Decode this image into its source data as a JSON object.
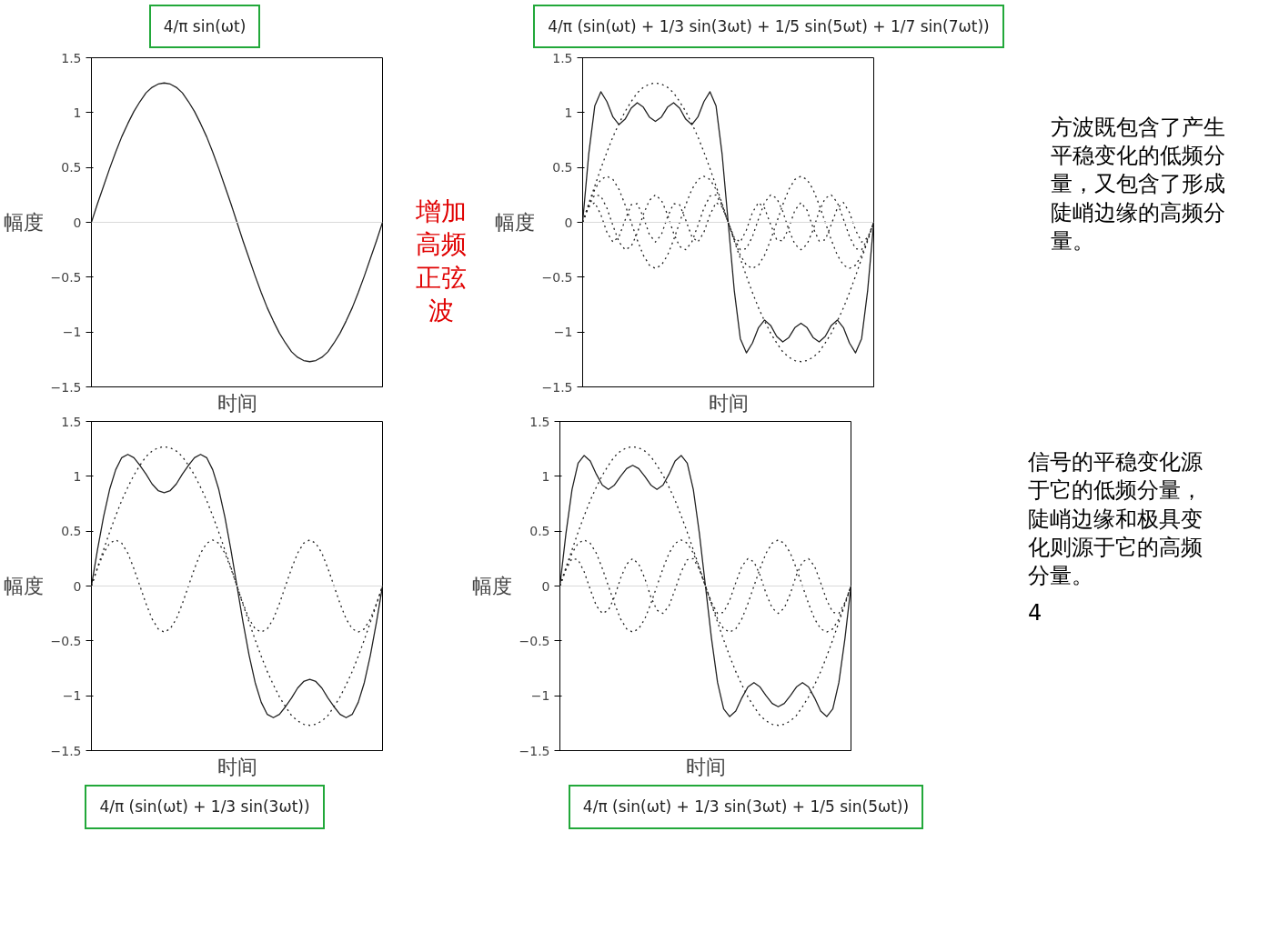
{
  "chart_data": [
    {
      "type": "line",
      "title": "4/π sin(ωt)",
      "ylabel": "幅度",
      "xlabel": "时间",
      "tick_labels": "y",
      "categories": [
        null,
        null,
        null,
        null,
        null,
        null,
        null,
        null,
        null,
        null,
        null,
        null,
        null,
        null,
        null,
        null,
        null,
        null,
        null,
        null,
        null,
        null,
        null,
        null,
        null,
        null,
        null,
        null,
        null,
        null,
        null,
        null,
        null,
        null,
        null,
        null,
        null,
        null,
        null,
        null,
        null,
        null,
        null,
        null,
        null,
        null,
        null,
        null,
        null
      ],
      "ylim": [
        -1.5,
        1.5
      ],
      "yticks": [
        {
          "value": -1.5,
          "label": "−1.5"
        },
        {
          "value": -1,
          "label": "−1"
        },
        {
          "value": -0.5,
          "label": "−0.5"
        },
        0,
        0.5,
        1,
        1.5
      ],
      "ref_lines": [
        {
          "axis": "y",
          "value": 0,
          "color": "#d9d9d9"
        }
      ],
      "annotations": [
        "增加高频正弦波"
      ],
      "series": [
        {
          "color": "#222222",
          "line_style": "solid",
          "values": [
            0,
            0.17,
            0.33,
            0.49,
            0.64,
            0.78,
            0.9,
            1.01,
            1.1,
            1.18,
            1.23,
            1.26,
            1.27,
            1.26,
            1.23,
            1.18,
            1.1,
            1.01,
            0.9,
            0.78,
            0.64,
            0.49,
            0.33,
            0.17,
            0,
            -0.17,
            -0.33,
            -0.49,
            -0.64,
            -0.78,
            -0.9,
            -1.01,
            -1.1,
            -1.18,
            -1.23,
            -1.26,
            -1.27,
            -1.26,
            -1.23,
            -1.18,
            -1.1,
            -1.01,
            -0.9,
            -0.78,
            -0.64,
            -0.49,
            -0.33,
            -0.17,
            0
          ]
        }
      ]
    },
    {
      "type": "line",
      "title": "4/π (sin(ωt) + 1/3 sin(3ωt) + 1/5 sin(5ωt) + 1/7 sin(7ωt))",
      "ylabel": "幅度",
      "xlabel": "时间",
      "tick_labels": "y",
      "categories": [
        null,
        null,
        null,
        null,
        null,
        null,
        null,
        null,
        null,
        null,
        null,
        null,
        null,
        null,
        null,
        null,
        null,
        null,
        null,
        null,
        null,
        null,
        null,
        null,
        null,
        null,
        null,
        null,
        null,
        null,
        null,
        null,
        null,
        null,
        null,
        null,
        null,
        null,
        null,
        null,
        null,
        null,
        null,
        null,
        null,
        null,
        null,
        null,
        null
      ],
      "ylim": [
        -1.5,
        1.5
      ],
      "yticks": [
        {
          "value": -1.5,
          "label": "−1.5"
        },
        {
          "value": -1,
          "label": "−1"
        },
        {
          "value": -0.5,
          "label": "−0.5"
        },
        0,
        0.5,
        1,
        1.5
      ],
      "ref_lines": [
        {
          "axis": "y",
          "value": 0,
          "color": "#d9d9d9"
        }
      ],
      "annotations": [
        "方波既包含了产生平稳变化的低频分量，又包含了形成陡峭边缘的高频分量。"
      ],
      "series": [
        {
          "color": "#222222",
          "line_style": "solid",
          "values": [
            0,
            0.62,
            1.06,
            1.19,
            1.1,
            0.96,
            0.89,
            0.94,
            1.04,
            1.09,
            1.05,
            0.96,
            0.92,
            0.96,
            1.05,
            1.09,
            1.04,
            0.94,
            0.89,
            0.96,
            1.1,
            1.19,
            1.06,
            0.62,
            0,
            -0.62,
            -1.06,
            -1.19,
            -1.1,
            -0.96,
            -0.89,
            -0.94,
            -1.04,
            -1.09,
            -1.05,
            -0.96,
            -0.92,
            -0.96,
            -1.05,
            -1.09,
            -1.04,
            -0.94,
            -0.89,
            -0.96,
            -1.1,
            -1.19,
            -1.06,
            -0.62,
            0
          ]
        },
        {
          "color": "#222222",
          "line_style": "dotted",
          "values": [
            0,
            0.17,
            0.33,
            0.49,
            0.64,
            0.78,
            0.9,
            1.01,
            1.1,
            1.18,
            1.23,
            1.26,
            1.27,
            1.26,
            1.23,
            1.18,
            1.1,
            1.01,
            0.9,
            0.78,
            0.64,
            0.49,
            0.33,
            0.17,
            0,
            -0.17,
            -0.33,
            -0.49,
            -0.64,
            -0.78,
            -0.9,
            -1.01,
            -1.1,
            -1.18,
            -1.23,
            -1.26,
            -1.27,
            -1.26,
            -1.23,
            -1.18,
            -1.1,
            -1.01,
            -0.9,
            -0.78,
            -0.64,
            -0.49,
            -0.33,
            -0.17,
            0
          ]
        },
        {
          "color": "#222222",
          "line_style": "dotted",
          "values": [
            0,
            0.16,
            0.3,
            0.39,
            0.42,
            0.39,
            0.3,
            0.16,
            0,
            -0.16,
            -0.3,
            -0.39,
            -0.42,
            -0.39,
            -0.3,
            -0.16,
            0,
            0.16,
            0.3,
            0.39,
            0.42,
            0.39,
            0.3,
            0.16,
            0,
            -0.16,
            -0.3,
            -0.39,
            -0.42,
            -0.39,
            -0.3,
            -0.16,
            0,
            0.16,
            0.3,
            0.39,
            0.42,
            0.39,
            0.3,
            0.16,
            0,
            -0.16,
            -0.3,
            -0.39,
            -0.42,
            -0.39,
            -0.3,
            -0.16,
            0
          ]
        },
        {
          "color": "#222222",
          "line_style": "dotted",
          "values": [
            0,
            0.15,
            0.25,
            0.24,
            0.13,
            -0.03,
            -0.18,
            -0.25,
            -0.22,
            -0.1,
            0.07,
            0.2,
            0.25,
            0.2,
            0.07,
            -0.1,
            -0.22,
            -0.25,
            -0.18,
            -0.03,
            0.13,
            0.24,
            0.25,
            0.15,
            0,
            -0.15,
            -0.25,
            -0.24,
            -0.13,
            0.03,
            0.18,
            0.25,
            0.22,
            0.1,
            -0.07,
            -0.2,
            -0.25,
            -0.2,
            -0.07,
            0.1,
            0.22,
            0.25,
            0.18,
            0.03,
            -0.13,
            -0.24,
            -0.25,
            -0.15,
            0
          ]
        },
        {
          "color": "#222222",
          "line_style": "dotted",
          "values": [
            0,
            0.14,
            0.18,
            0.07,
            -0.09,
            -0.18,
            -0.13,
            0.02,
            0.16,
            0.17,
            0.05,
            -0.11,
            -0.18,
            -0.11,
            0.05,
            0.17,
            0.16,
            0.02,
            -0.13,
            -0.18,
            -0.09,
            0.07,
            0.18,
            0.14,
            0,
            -0.14,
            -0.18,
            -0.07,
            0.09,
            0.18,
            0.13,
            -0.02,
            -0.16,
            -0.17,
            -0.05,
            0.11,
            0.18,
            0.11,
            -0.05,
            -0.17,
            -0.16,
            -0.02,
            0.13,
            0.18,
            0.09,
            -0.07,
            -0.18,
            -0.14,
            0
          ]
        }
      ]
    },
    {
      "type": "line",
      "title": "4/π (sin(ωt) + 1/3 sin(3ωt))",
      "ylabel": "幅度",
      "xlabel": "时间",
      "tick_labels": "y",
      "categories": [
        null,
        null,
        null,
        null,
        null,
        null,
        null,
        null,
        null,
        null,
        null,
        null,
        null,
        null,
        null,
        null,
        null,
        null,
        null,
        null,
        null,
        null,
        null,
        null,
        null,
        null,
        null,
        null,
        null,
        null,
        null,
        null,
        null,
        null,
        null,
        null,
        null,
        null,
        null,
        null,
        null,
        null,
        null,
        null,
        null,
        null,
        null,
        null,
        null
      ],
      "ylim": [
        -1.5,
        1.5
      ],
      "yticks": [
        {
          "value": -1.5,
          "label": "−1.5"
        },
        {
          "value": -1,
          "label": "−1"
        },
        {
          "value": -0.5,
          "label": "−0.5"
        },
        0,
        0.5,
        1,
        1.5
      ],
      "ref_lines": [
        {
          "axis": "y",
          "value": 0,
          "color": "#d9d9d9"
        }
      ],
      "series": [
        {
          "color": "#222222",
          "line_style": "solid",
          "values": [
            0,
            0.33,
            0.63,
            0.88,
            1.06,
            1.17,
            1.2,
            1.17,
            1.1,
            1.02,
            0.93,
            0.87,
            0.85,
            0.87,
            0.93,
            1.02,
            1.1,
            1.17,
            1.2,
            1.17,
            1.06,
            0.88,
            0.63,
            0.33,
            0,
            -0.33,
            -0.63,
            -0.88,
            -1.06,
            -1.17,
            -1.2,
            -1.17,
            -1.1,
            -1.02,
            -0.93,
            -0.87,
            -0.85,
            -0.87,
            -0.93,
            -1.02,
            -1.1,
            -1.17,
            -1.2,
            -1.17,
            -1.06,
            -0.88,
            -0.63,
            -0.33,
            0
          ]
        },
        {
          "color": "#222222",
          "line_style": "dotted",
          "values": [
            0,
            0.17,
            0.33,
            0.49,
            0.64,
            0.78,
            0.9,
            1.01,
            1.1,
            1.18,
            1.23,
            1.26,
            1.27,
            1.26,
            1.23,
            1.18,
            1.1,
            1.01,
            0.9,
            0.78,
            0.64,
            0.49,
            0.33,
            0.17,
            0,
            -0.17,
            -0.33,
            -0.49,
            -0.64,
            -0.78,
            -0.9,
            -1.01,
            -1.1,
            -1.18,
            -1.23,
            -1.26,
            -1.27,
            -1.26,
            -1.23,
            -1.18,
            -1.1,
            -1.01,
            -0.9,
            -0.78,
            -0.64,
            -0.49,
            -0.33,
            -0.17,
            0
          ]
        },
        {
          "color": "#222222",
          "line_style": "dotted",
          "values": [
            0,
            0.16,
            0.3,
            0.39,
            0.42,
            0.39,
            0.3,
            0.16,
            0,
            -0.16,
            -0.3,
            -0.39,
            -0.42,
            -0.39,
            -0.3,
            -0.16,
            0,
            0.16,
            0.3,
            0.39,
            0.42,
            0.39,
            0.3,
            0.16,
            0,
            -0.16,
            -0.3,
            -0.39,
            -0.42,
            -0.39,
            -0.3,
            -0.16,
            0,
            0.16,
            0.3,
            0.39,
            0.42,
            0.39,
            0.3,
            0.16,
            0,
            -0.16,
            -0.3,
            -0.39,
            -0.42,
            -0.39,
            -0.3,
            -0.16,
            0
          ]
        }
      ]
    },
    {
      "type": "line",
      "title": "4/π (sin(ωt) + 1/3 sin(3ωt) + 1/5 sin(5ωt))",
      "ylabel": "幅度",
      "xlabel": "时间",
      "tick_labels": "y",
      "categories": [
        null,
        null,
        null,
        null,
        null,
        null,
        null,
        null,
        null,
        null,
        null,
        null,
        null,
        null,
        null,
        null,
        null,
        null,
        null,
        null,
        null,
        null,
        null,
        null,
        null,
        null,
        null,
        null,
        null,
        null,
        null,
        null,
        null,
        null,
        null,
        null,
        null,
        null,
        null,
        null,
        null,
        null,
        null,
        null,
        null,
        null,
        null,
        null,
        null
      ],
      "ylim": [
        -1.5,
        1.5
      ],
      "yticks": [
        {
          "value": -1.5,
          "label": "−1.5"
        },
        {
          "value": -1,
          "label": "−1"
        },
        {
          "value": -0.5,
          "label": "−0.5"
        },
        0,
        0.5,
        1,
        1.5
      ],
      "ref_lines": [
        {
          "axis": "y",
          "value": 0,
          "color": "#d9d9d9"
        }
      ],
      "annotations": [
        "信号的平稳变化源于它的低频分量，陡峭边缘和极具变化则源于它的高频分量。",
        "4"
      ],
      "series": [
        {
          "color": "#222222",
          "line_style": "solid",
          "values": [
            0,
            0.48,
            0.88,
            1.12,
            1.19,
            1.14,
            1.02,
            0.92,
            0.88,
            0.92,
            1.0,
            1.07,
            1.1,
            1.07,
            1.0,
            0.92,
            0.88,
            0.92,
            1.02,
            1.14,
            1.19,
            1.12,
            0.88,
            0.48,
            0,
            -0.48,
            -0.88,
            -1.12,
            -1.19,
            -1.14,
            -1.02,
            -0.92,
            -0.88,
            -0.92,
            -1.0,
            -1.07,
            -1.1,
            -1.07,
            -1.0,
            -0.92,
            -0.88,
            -0.92,
            -1.02,
            -1.14,
            -1.19,
            -1.12,
            -0.88,
            -0.48,
            0
          ]
        },
        {
          "color": "#222222",
          "line_style": "dotted",
          "values": [
            0,
            0.17,
            0.33,
            0.49,
            0.64,
            0.78,
            0.9,
            1.01,
            1.1,
            1.18,
            1.23,
            1.26,
            1.27,
            1.26,
            1.23,
            1.18,
            1.1,
            1.01,
            0.9,
            0.78,
            0.64,
            0.49,
            0.33,
            0.17,
            0,
            -0.17,
            -0.33,
            -0.49,
            -0.64,
            -0.78,
            -0.9,
            -1.01,
            -1.1,
            -1.18,
            -1.23,
            -1.26,
            -1.27,
            -1.26,
            -1.23,
            -1.18,
            -1.1,
            -1.01,
            -0.9,
            -0.78,
            -0.64,
            -0.49,
            -0.33,
            -0.17,
            0
          ]
        },
        {
          "color": "#222222",
          "line_style": "dotted",
          "values": [
            0,
            0.16,
            0.3,
            0.39,
            0.42,
            0.39,
            0.3,
            0.16,
            0,
            -0.16,
            -0.3,
            -0.39,
            -0.42,
            -0.39,
            -0.3,
            -0.16,
            0,
            0.16,
            0.3,
            0.39,
            0.42,
            0.39,
            0.3,
            0.16,
            0,
            -0.16,
            -0.3,
            -0.39,
            -0.42,
            -0.39,
            -0.3,
            -0.16,
            0,
            0.16,
            0.3,
            0.39,
            0.42,
            0.39,
            0.3,
            0.16,
            0,
            -0.16,
            -0.3,
            -0.39,
            -0.42,
            -0.39,
            -0.3,
            -0.16,
            0
          ]
        },
        {
          "color": "#222222",
          "line_style": "dotted",
          "values": [
            0,
            0.15,
            0.25,
            0.24,
            0.13,
            -0.03,
            -0.18,
            -0.25,
            -0.22,
            -0.1,
            0.07,
            0.2,
            0.25,
            0.2,
            0.07,
            -0.1,
            -0.22,
            -0.25,
            -0.18,
            -0.03,
            0.13,
            0.24,
            0.25,
            0.15,
            0,
            -0.15,
            -0.25,
            -0.24,
            -0.13,
            0.03,
            0.18,
            0.25,
            0.22,
            0.1,
            -0.07,
            -0.2,
            -0.25,
            -0.2,
            -0.07,
            0.1,
            0.22,
            0.25,
            0.18,
            0.03,
            -0.13,
            -0.24,
            -0.25,
            -0.15,
            0
          ]
        }
      ]
    }
  ]
}
